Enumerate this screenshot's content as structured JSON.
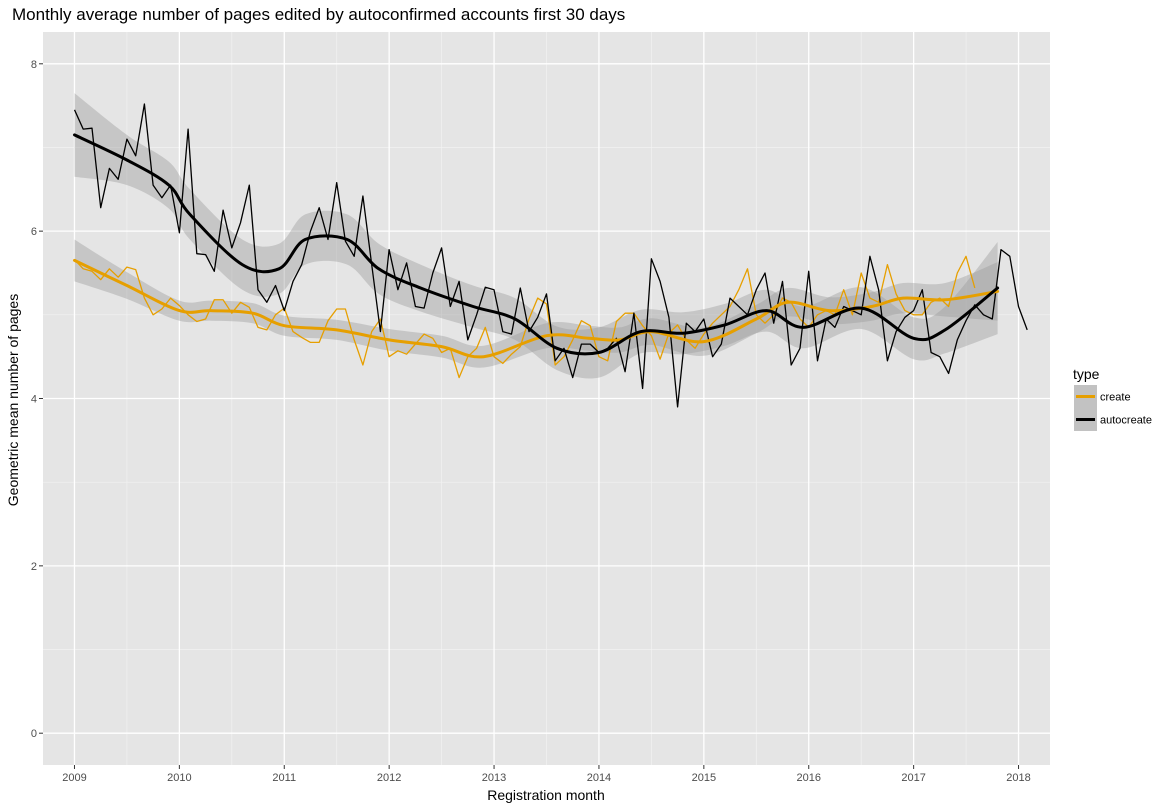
{
  "chart_data": {
    "type": "line",
    "title": "Monthly average number of pages edited by autoconfirmed accounts first 30 days",
    "xlabel": "Registration month",
    "ylabel": "Geometric mean number of pages",
    "xlim": [
      2008.7,
      2018.3
    ],
    "ylim": [
      -0.38,
      8.38
    ],
    "x_ticks": [
      "2009",
      "2010",
      "2011",
      "2012",
      "2013",
      "2014",
      "2015",
      "2016",
      "2017",
      "2018"
    ],
    "y_ticks": [
      "0",
      "2",
      "4",
      "6",
      "8"
    ],
    "grid": true,
    "legend": {
      "title": "type",
      "position": "right",
      "entries": [
        "create",
        "autocreate"
      ]
    },
    "series": [
      {
        "name": "create",
        "color": "#e69f00",
        "x_start": 2009.0,
        "x_step": 0.08333,
        "values": [
          5.66,
          5.55,
          5.52,
          5.42,
          5.55,
          5.45,
          5.57,
          5.54,
          5.2,
          5.0,
          5.07,
          5.2,
          5.11,
          5.0,
          4.92,
          4.95,
          5.18,
          5.18,
          5.02,
          5.15,
          5.09,
          4.85,
          4.82,
          5.0,
          5.08,
          4.8,
          4.73,
          4.67,
          4.67,
          4.93,
          5.07,
          5.07,
          4.7,
          4.4,
          4.8,
          4.95,
          4.5,
          4.57,
          4.53,
          4.65,
          4.77,
          4.72,
          4.55,
          4.6,
          4.25,
          4.5,
          4.6,
          4.85,
          4.5,
          4.42,
          4.53,
          4.62,
          4.95,
          5.2,
          5.13,
          4.4,
          4.5,
          4.7,
          4.93,
          4.87,
          4.5,
          4.45,
          4.92,
          5.02,
          5.02,
          4.87,
          4.75,
          4.47,
          4.78,
          4.88,
          4.7,
          4.6,
          4.77,
          4.9,
          5.0,
          5.1,
          5.3,
          5.55,
          5.0,
          4.9,
          5.0,
          5.2,
          5.15,
          4.95,
          4.85,
          5.0,
          5.05,
          5.0,
          5.3,
          5.0,
          5.5,
          5.2,
          5.15,
          5.6,
          5.25,
          5.05,
          5.0,
          5.0,
          5.15,
          5.2,
          5.1,
          5.5,
          5.7,
          5.32
        ]
      },
      {
        "name": "autocreate",
        "color": "#000000",
        "x_start": 2009.0,
        "x_step": 0.08333,
        "values": [
          7.45,
          7.22,
          7.23,
          6.28,
          6.75,
          6.62,
          7.1,
          6.9,
          7.52,
          6.55,
          6.4,
          6.55,
          5.98,
          7.22,
          5.73,
          5.72,
          5.52,
          6.25,
          5.8,
          6.1,
          6.55,
          5.3,
          5.15,
          5.35,
          5.05,
          5.4,
          5.6,
          6.0,
          6.28,
          5.9,
          6.58,
          5.88,
          5.7,
          6.42,
          5.6,
          4.8,
          5.78,
          5.3,
          5.62,
          5.1,
          5.08,
          5.5,
          5.8,
          5.1,
          5.4,
          4.7,
          5.0,
          5.33,
          5.3,
          4.8,
          4.77,
          5.32,
          4.8,
          4.97,
          5.25,
          4.45,
          4.6,
          4.25,
          4.65,
          4.65,
          4.55,
          4.6,
          4.72,
          4.32,
          5.02,
          4.12,
          5.67,
          5.4,
          4.97,
          3.9,
          4.9,
          4.8,
          4.95,
          4.5,
          4.65,
          5.2,
          5.1,
          5.0,
          5.3,
          5.5,
          4.9,
          5.4,
          4.4,
          4.6,
          5.52,
          4.45,
          4.95,
          4.85,
          5.1,
          5.05,
          5.0,
          5.7,
          5.3,
          4.45,
          4.8,
          4.97,
          5.05,
          5.3,
          4.55,
          4.5,
          4.3,
          4.7,
          4.93,
          5.12,
          5.0,
          4.95,
          5.78,
          5.7,
          5.1,
          4.82
        ]
      }
    ],
    "smooth_series": [
      {
        "name": "create",
        "color": "#e69f00",
        "x": [
          2009.0,
          2009.5,
          2010.0,
          2010.3,
          2010.7,
          2011.0,
          2011.5,
          2012.0,
          2012.5,
          2012.9,
          2013.5,
          2013.9,
          2014.2,
          2014.5,
          2015.0,
          2015.5,
          2015.8,
          2016.2,
          2016.6,
          2016.9,
          2017.3,
          2017.8
        ],
        "y": [
          5.65,
          5.35,
          5.05,
          5.05,
          5.02,
          4.87,
          4.82,
          4.7,
          4.62,
          4.5,
          4.75,
          4.72,
          4.7,
          4.8,
          4.68,
          4.95,
          5.15,
          5.05,
          5.1,
          5.2,
          5.18,
          5.28
        ],
        "band": [
          0.25,
          0.16,
          0.12,
          0.12,
          0.12,
          0.12,
          0.12,
          0.13,
          0.13,
          0.13,
          0.15,
          0.15,
          0.15,
          0.16,
          0.17,
          0.17,
          0.17,
          0.16,
          0.17,
          0.18,
          0.2,
          0.35
        ]
      },
      {
        "name": "autocreate",
        "color": "#000000",
        "x": [
          2009.0,
          2009.5,
          2009.9,
          2010.1,
          2010.6,
          2010.95,
          2011.2,
          2011.6,
          2011.9,
          2012.3,
          2012.8,
          2013.2,
          2013.6,
          2014.0,
          2014.4,
          2014.8,
          2015.2,
          2015.6,
          2015.95,
          2016.5,
          2017.0,
          2017.3,
          2017.8
        ],
        "y": [
          7.15,
          6.85,
          6.55,
          6.2,
          5.6,
          5.55,
          5.9,
          5.9,
          5.55,
          5.32,
          5.1,
          4.95,
          4.6,
          4.55,
          4.8,
          4.78,
          4.88,
          5.05,
          4.85,
          5.08,
          4.72,
          4.82,
          5.32
        ],
        "band": [
          0.5,
          0.3,
          0.28,
          0.3,
          0.3,
          0.3,
          0.3,
          0.3,
          0.3,
          0.28,
          0.25,
          0.25,
          0.26,
          0.3,
          0.26,
          0.25,
          0.25,
          0.25,
          0.25,
          0.25,
          0.25,
          0.28,
          0.55
        ]
      }
    ]
  }
}
